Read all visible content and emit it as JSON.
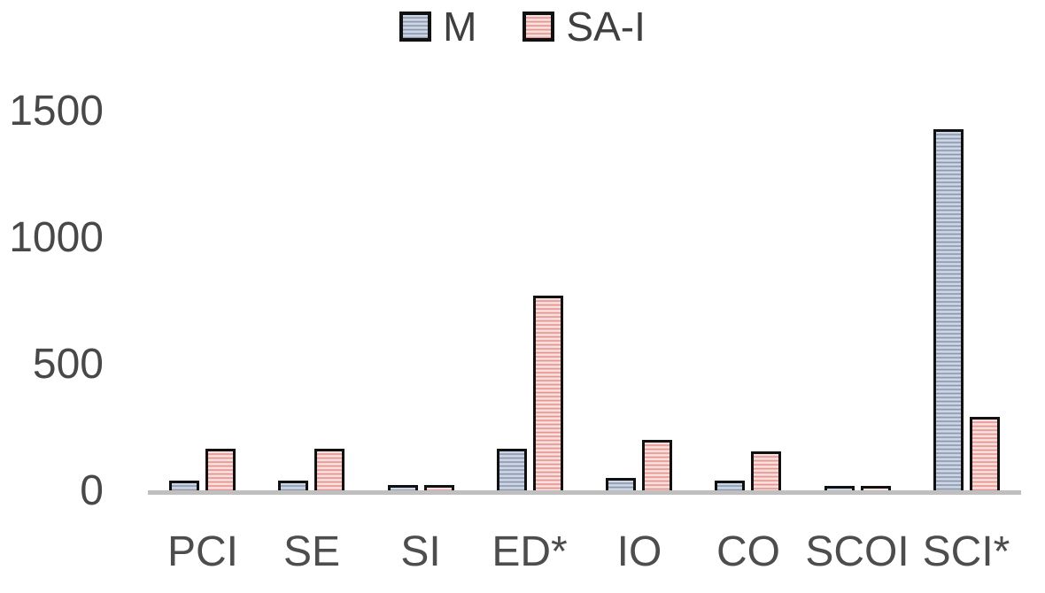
{
  "chart_data": {
    "type": "bar",
    "title": "",
    "xlabel": "",
    "ylabel": "",
    "categories": [
      "PCI",
      "SE",
      "SI",
      "ED*",
      "IO",
      "CO",
      "SCOI",
      "SCI*"
    ],
    "series": [
      {
        "name": "M",
        "values": [
          40,
          40,
          20,
          165,
          50,
          40,
          15,
          1425
        ]
      },
      {
        "name": "SA-I",
        "values": [
          165,
          165,
          20,
          770,
          200,
          155,
          15,
          290
        ]
      }
    ],
    "y_ticks": [
      0,
      500,
      1000,
      1500
    ],
    "ylim": [
      0,
      1500
    ],
    "grid": false,
    "legend_position": "top-center",
    "pattern": "horizontal-stripes",
    "colors": {
      "m_light": "#ccd8ea",
      "m_dark": "#8e97a7",
      "sai_light": "#f6e2e0",
      "sai_dark": "#e8928d",
      "bar_border": "#111111",
      "axis_line": "#bfbfbf",
      "tick_text": "#484848",
      "category_text": "#4d4d4d",
      "legend_text": "#3f3f3f"
    }
  }
}
